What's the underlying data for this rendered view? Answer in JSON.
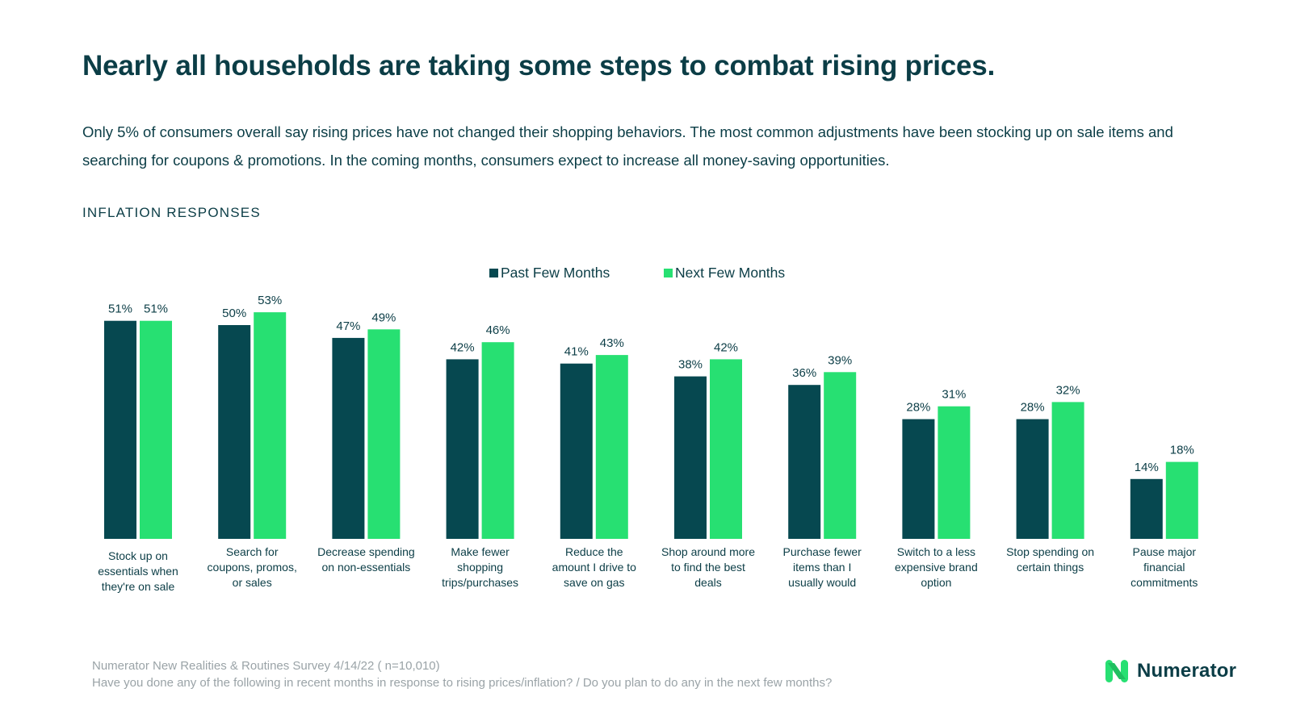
{
  "title": "Nearly all households are taking some steps to combat rising prices.",
  "subtitle": "Only 5% of consumers overall say rising prices have not changed their shopping behaviors. The most common adjustments have been stocking up on sale items and searching for coupons & promotions. In the coming months, consumers expect to increase all money-saving opportunities.",
  "section_label": "INFLATION RESPONSES",
  "colors": {
    "past": "#064850",
    "next": "#27e072",
    "text": "#0b3d46"
  },
  "chart_data": {
    "type": "bar",
    "title": "INFLATION RESPONSES",
    "xlabel": "",
    "ylabel": "",
    "ylim": [
      0,
      55
    ],
    "grid": false,
    "legend": "top-center",
    "categories": [
      "Stock up on essentials when they're on sale",
      "Search for coupons, promos, or sales",
      "Decrease spending on non-essentials",
      "Make fewer shopping trips/purchases",
      "Reduce the amount I drive to save on gas",
      "Shop around more to find the best deals",
      "Purchase fewer items than I usually would",
      "Switch to a less expensive brand option",
      "Stop spending on certain things",
      "Pause major financial commitments"
    ],
    "category_lines": [
      [
        "Stock up on",
        "essentials when",
        "they're on sale"
      ],
      [
        "Search for",
        "coupons, promos,",
        "or sales"
      ],
      [
        "Decrease spending",
        "on non-essentials"
      ],
      [
        "Make fewer",
        "shopping",
        "trips/purchases"
      ],
      [
        "Reduce the",
        "amount I drive to",
        "save on gas"
      ],
      [
        "Shop around more",
        "to find the best",
        "deals"
      ],
      [
        "Purchase fewer",
        "items than I",
        "usually would"
      ],
      [
        "Switch to a less",
        "expensive brand",
        "option"
      ],
      [
        "Stop spending on",
        "certain things"
      ],
      [
        "Pause major",
        "financial",
        "commitments"
      ]
    ],
    "series": [
      {
        "name": "Past Few Months",
        "values": [
          51,
          50,
          47,
          42,
          41,
          38,
          36,
          28,
          28,
          14
        ]
      },
      {
        "name": "Next Few Months",
        "values": [
          51,
          53,
          49,
          46,
          43,
          42,
          39,
          31,
          32,
          18
        ]
      }
    ],
    "value_suffix": "%"
  },
  "footnote": {
    "source": "Numerator New Realities & Routines Survey 4/14/22 ( n=10,010)",
    "question": "Have you done any of the following in recent months in response to rising prices/inflation? / Do you plan to do any in the next few months?"
  },
  "logo": {
    "text": "Numerator",
    "icon": "numerator-logo-icon"
  }
}
